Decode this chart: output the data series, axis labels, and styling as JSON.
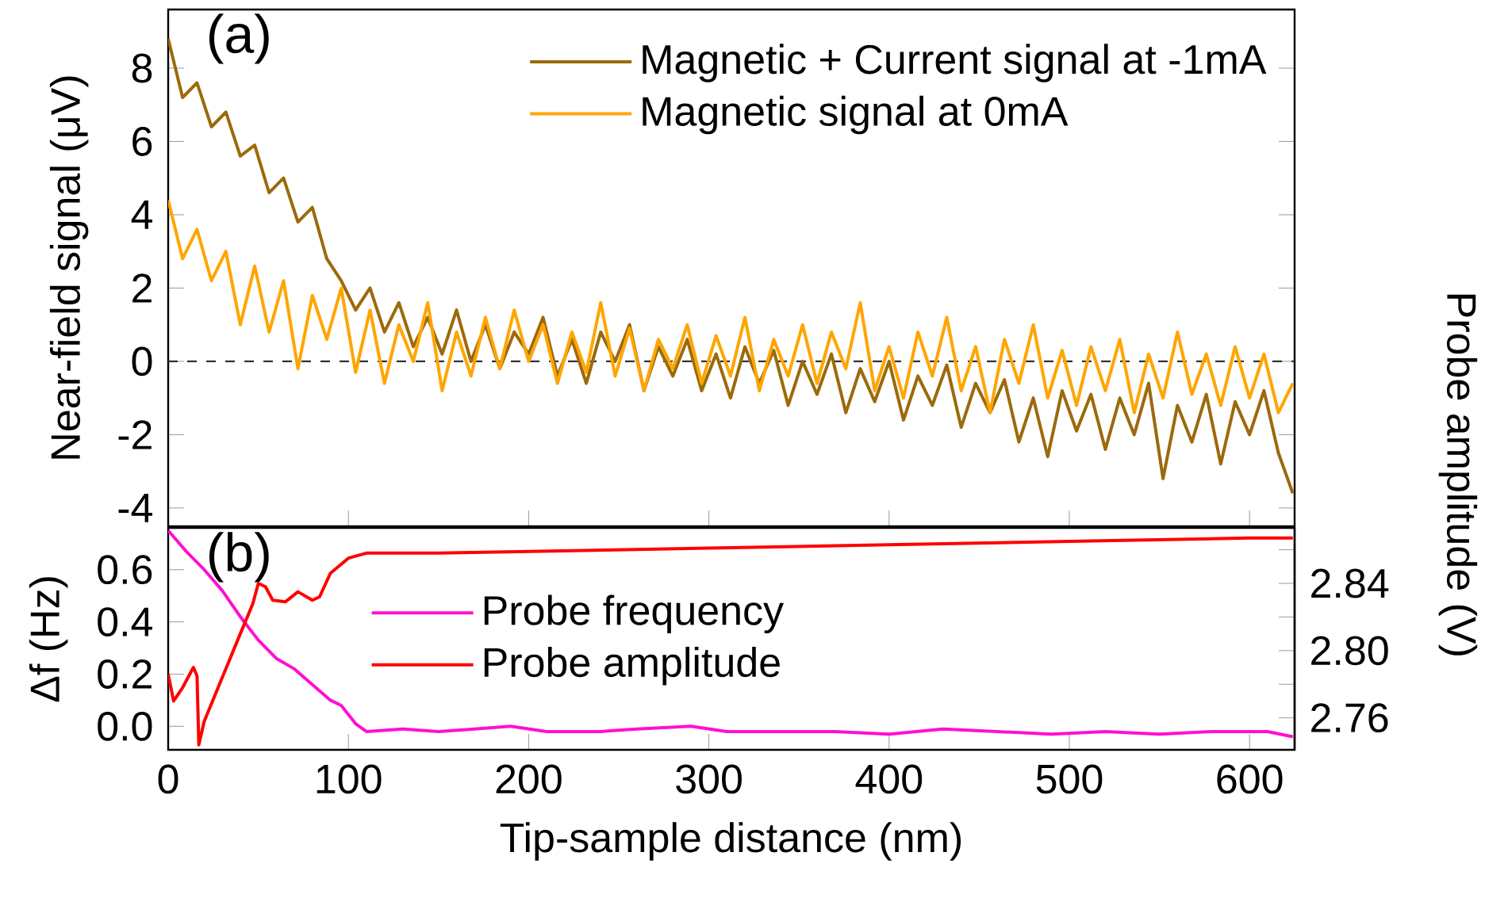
{
  "chart_data": [
    {
      "type": "line",
      "ylabel": "Near-field signal (μV)",
      "annotations": [
        "(a)"
      ],
      "xlim": [
        0,
        625
      ],
      "ylim": [
        -4.5,
        9.6
      ],
      "xticks": [
        0,
        100,
        200,
        300,
        400,
        500,
        600
      ],
      "yticks": [
        -4,
        -2,
        0,
        2,
        4,
        6,
        8
      ],
      "tick_labels": "y",
      "legend": "top right",
      "grid": false,
      "marker": "none",
      "ref_lines": [
        {
          "axis": "y",
          "value": 0,
          "color": "#333333",
          "line_style": "dashed"
        }
      ],
      "series": [
        {
          "name": "Magnetic + Current signal at -1mA",
          "color": "#9c6a0c",
          "x": [
            0,
            8,
            16,
            24,
            32,
            40,
            48,
            56,
            64,
            72,
            80,
            88,
            96,
            104,
            112,
            120,
            128,
            136,
            144,
            152,
            160,
            168,
            176,
            184,
            192,
            200,
            208,
            216,
            224,
            232,
            240,
            248,
            256,
            264,
            272,
            280,
            288,
            296,
            304,
            312,
            320,
            328,
            336,
            344,
            352,
            360,
            368,
            376,
            384,
            392,
            400,
            408,
            416,
            424,
            432,
            440,
            448,
            456,
            464,
            472,
            480,
            488,
            496,
            504,
            512,
            520,
            528,
            536,
            544,
            552,
            560,
            568,
            576,
            584,
            592,
            600,
            608,
            616,
            624
          ],
          "values": [
            8.8,
            7.2,
            7.6,
            6.4,
            6.8,
            5.6,
            5.9,
            4.6,
            5.0,
            3.8,
            4.2,
            2.8,
            2.2,
            1.4,
            2.0,
            0.8,
            1.6,
            0.4,
            1.2,
            0.2,
            1.4,
            0.0,
            1.0,
            -0.2,
            0.8,
            0.2,
            1.2,
            -0.4,
            0.6,
            -0.6,
            0.8,
            0.0,
            1.0,
            -0.8,
            0.4,
            -0.4,
            0.6,
            -0.8,
            0.2,
            -1.0,
            0.4,
            -0.6,
            0.3,
            -1.2,
            0.0,
            -0.9,
            0.2,
            -1.4,
            -0.2,
            -1.1,
            0.0,
            -1.6,
            -0.4,
            -1.2,
            -0.1,
            -1.8,
            -0.6,
            -1.4,
            -0.5,
            -2.2,
            -1.0,
            -2.6,
            -0.8,
            -1.9,
            -0.9,
            -2.4,
            -1.0,
            -2.0,
            -0.6,
            -3.2,
            -1.2,
            -2.2,
            -0.9,
            -2.8,
            -1.1,
            -2.0,
            -0.8,
            -2.5,
            -3.6
          ]
        },
        {
          "name": "Magnetic signal at 0mA",
          "color": "#ffa500",
          "x": [
            0,
            8,
            16,
            24,
            32,
            40,
            48,
            56,
            64,
            72,
            80,
            88,
            96,
            104,
            112,
            120,
            128,
            136,
            144,
            152,
            160,
            168,
            176,
            184,
            192,
            200,
            208,
            216,
            224,
            232,
            240,
            248,
            256,
            264,
            272,
            280,
            288,
            296,
            304,
            312,
            320,
            328,
            336,
            344,
            352,
            360,
            368,
            376,
            384,
            392,
            400,
            408,
            416,
            424,
            432,
            440,
            448,
            456,
            464,
            472,
            480,
            488,
            496,
            504,
            512,
            520,
            528,
            536,
            544,
            552,
            560,
            568,
            576,
            584,
            592,
            600,
            608,
            616,
            624
          ],
          "values": [
            4.4,
            2.8,
            3.6,
            2.2,
            3.0,
            1.0,
            2.6,
            0.8,
            2.2,
            -0.2,
            1.8,
            0.6,
            2.0,
            -0.3,
            1.4,
            -0.6,
            1.0,
            0.0,
            1.6,
            -0.8,
            0.8,
            -0.4,
            1.2,
            -0.2,
            1.4,
            0.0,
            1.0,
            -0.6,
            0.8,
            -0.3,
            1.6,
            -0.4,
            0.9,
            -0.8,
            0.6,
            -0.2,
            1.0,
            -0.6,
            0.7,
            -0.4,
            1.2,
            -0.8,
            0.6,
            -0.4,
            1.0,
            -0.6,
            0.8,
            -0.2,
            1.6,
            -0.8,
            0.4,
            -1.0,
            0.8,
            -0.4,
            1.2,
            -0.8,
            0.4,
            -1.4,
            0.6,
            -0.6,
            1.0,
            -1.0,
            0.3,
            -1.2,
            0.4,
            -0.8,
            0.6,
            -1.4,
            0.2,
            -1.0,
            0.8,
            -0.9,
            0.2,
            -1.2,
            0.4,
            -1.0,
            0.2,
            -1.4,
            -0.6
          ]
        }
      ]
    },
    {
      "type": "line",
      "xlabel": "Tip-sample distance (nm)",
      "ylabel": "Δf (Hz)",
      "y2label": "Probe amplitude (V)",
      "annotations": [
        "(b)"
      ],
      "xlim": [
        0,
        625
      ],
      "ylim": [
        -0.09,
        0.76
      ],
      "y2lim": [
        2.741,
        2.873
      ],
      "xticks": [
        0,
        100,
        200,
        300,
        400,
        500,
        600
      ],
      "yticks": [
        {
          "value": 0,
          "label": "0.0"
        },
        0.2,
        0.4,
        0.6
      ],
      "y2ticks": [
        2.76,
        {
          "value": 2.78,
          "label": null
        },
        {
          "value": 2.8,
          "label": "2.80"
        },
        {
          "value": 2.82,
          "label": null
        },
        2.84,
        {
          "value": 2.86,
          "label": null
        }
      ],
      "legend": "center",
      "grid": false,
      "marker": "none",
      "series": [
        {
          "name": "Probe frequency",
          "color": "#ff10d0",
          "x": [
            0,
            10,
            20,
            30,
            40,
            50,
            60,
            70,
            80,
            90,
            96,
            104,
            110,
            130,
            150,
            170,
            190,
            210,
            240,
            260,
            290,
            310,
            340,
            370,
            400,
            430,
            460,
            490,
            520,
            550,
            580,
            610,
            624
          ],
          "values": [
            0.75,
            0.67,
            0.6,
            0.52,
            0.42,
            0.33,
            0.26,
            0.22,
            0.16,
            0.1,
            0.08,
            0.01,
            -0.02,
            -0.01,
            -0.02,
            -0.01,
            0.0,
            -0.02,
            -0.02,
            -0.01,
            0.0,
            -0.02,
            -0.02,
            -0.02,
            -0.03,
            -0.01,
            -0.02,
            -0.03,
            -0.02,
            -0.03,
            -0.02,
            -0.02,
            -0.04
          ]
        },
        {
          "name": "Probe amplitude",
          "color": "#ff0000",
          "axis": "y2",
          "x": [
            0,
            3,
            8,
            14,
            16,
            17,
            20,
            30,
            40,
            47,
            50,
            54,
            58,
            65,
            72,
            80,
            84,
            90,
            100,
            110,
            150,
            200,
            300,
            400,
            500,
            600,
            624
          ],
          "values": [
            2.786,
            2.77,
            2.778,
            2.79,
            2.785,
            2.744,
            2.758,
            2.784,
            2.81,
            2.828,
            2.84,
            2.838,
            2.83,
            2.829,
            2.835,
            2.83,
            2.832,
            2.846,
            2.855,
            2.858,
            2.858,
            2.859,
            2.861,
            2.863,
            2.865,
            2.867,
            2.867
          ]
        }
      ]
    }
  ]
}
